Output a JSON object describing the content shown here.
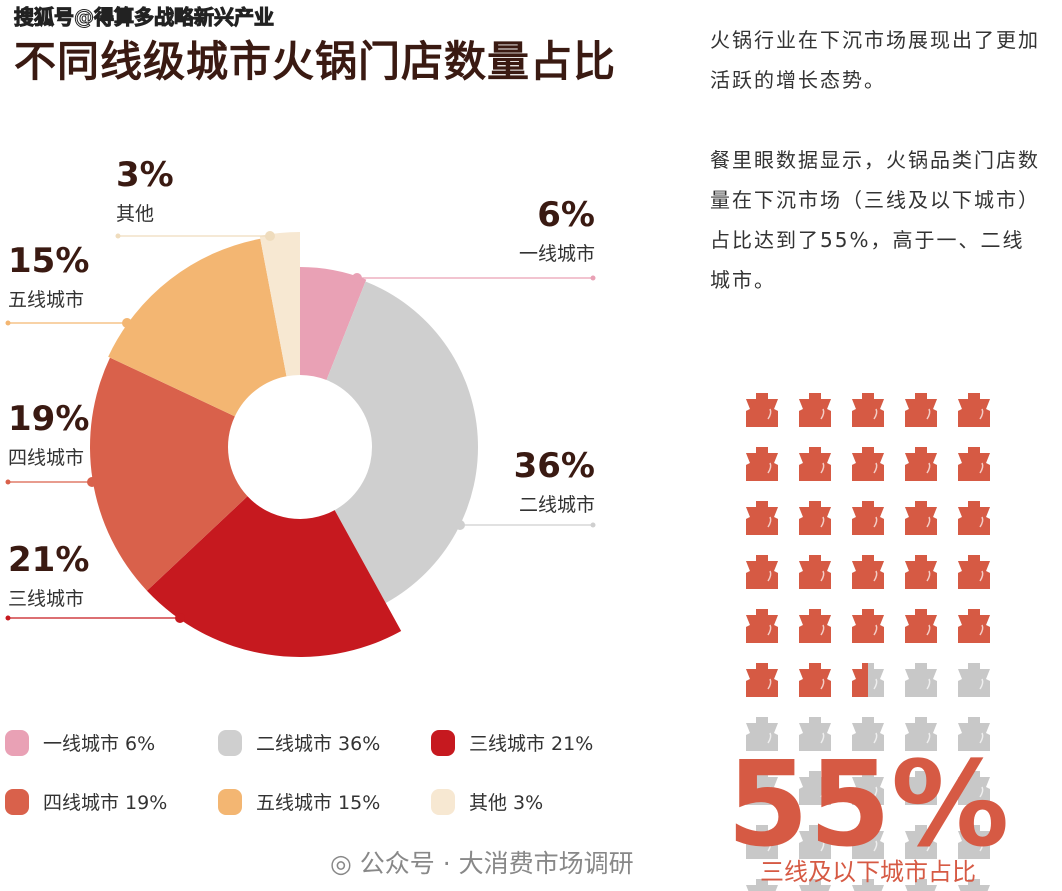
{
  "watermark_top": "搜狐号@得算多战略新兴产业",
  "title": "不同线级城市火锅门店数量占比",
  "description": {
    "p1": "火锅行业在下沉市场展现出了更加活跃的增长态势。",
    "p2": "餐里眼数据显示，火锅品类门店数量在下沉市场（三线及以下城市）占比达到了55%，高于一、二线城市。"
  },
  "chart_data": [
    {
      "type": "pie",
      "variant": "donut",
      "title": "不同线级城市火锅门店数量占比",
      "categories": [
        "一线城市",
        "二线城市",
        "三线城市",
        "四线城市",
        "五线城市",
        "其他"
      ],
      "values": [
        6,
        36,
        21,
        19,
        15,
        3
      ],
      "labels": [
        "6%",
        "36%",
        "21%",
        "19%",
        "15%",
        "3%"
      ],
      "colors": [
        "#e9a1b5",
        "#cfcfcf",
        "#c6191f",
        "#d9614b",
        "#f3b672",
        "#f7e8d2"
      ],
      "legend": [
        "一线城市 6%",
        "二线城市 36%",
        "三线城市 21%",
        "四线城市 19%",
        "五线城市 15%",
        "其他 3%"
      ],
      "legend_placement": "bottom"
    },
    {
      "type": "pictogram",
      "title": "三线及以下城市占比",
      "value_label": "55%",
      "value": 55,
      "total_icons": 50,
      "filled_color": "#d65a44",
      "empty_color": "#c8c8c8"
    }
  ],
  "watermark_bottom": "公众号 · 大消费市场调研"
}
